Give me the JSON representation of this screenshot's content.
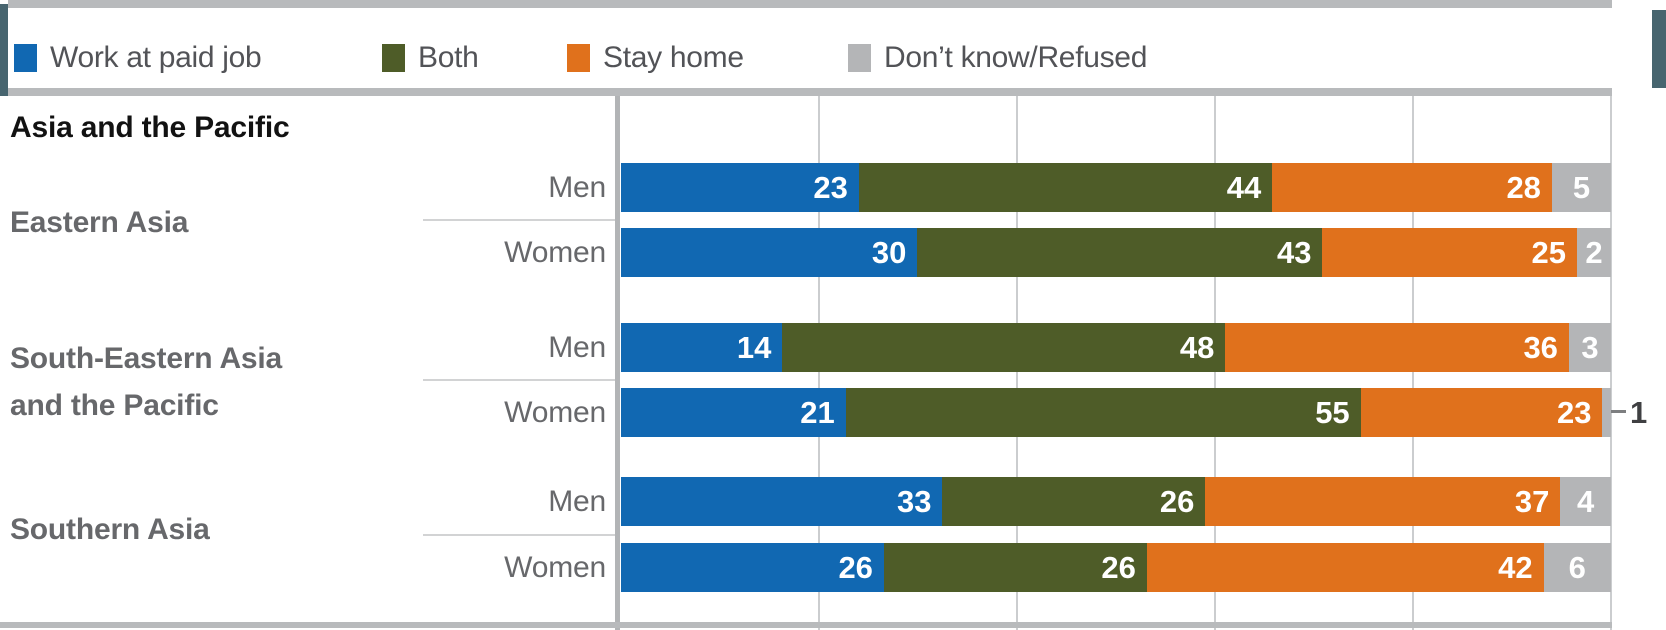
{
  "legend": {
    "items": [
      {
        "label": "Work at paid job",
        "color": "#1168b2"
      },
      {
        "label": "Both",
        "color": "#4e5c28"
      },
      {
        "label": "Stay home",
        "color": "#e0711c"
      },
      {
        "label": "Don’t know/Refused",
        "color": "#b4b5b7"
      }
    ]
  },
  "chart_data": {
    "type": "bar",
    "orientation": "horizontal",
    "stacked": true,
    "title": "Asia and the Pacific",
    "unit": "percent",
    "xlim": [
      0,
      100
    ],
    "gridlines_pct": [
      20,
      40,
      60,
      80,
      100
    ],
    "grid": true,
    "legend_position": "top",
    "series_names": [
      "Work at paid job",
      "Both",
      "Stay home",
      "Don’t know/Refused"
    ],
    "series_colors": [
      "#1168b2",
      "#4e5c28",
      "#e0711c",
      "#b4b5b7"
    ],
    "groups": [
      {
        "label_lines": [
          "Eastern Asia"
        ],
        "rows": [
          {
            "label": "Men",
            "values": [
              23,
              44,
              28,
              5
            ]
          },
          {
            "label": "Women",
            "values": [
              30,
              43,
              25,
              2
            ]
          }
        ]
      },
      {
        "label_lines": [
          "South-Eastern Asia",
          "and the Pacific"
        ],
        "rows": [
          {
            "label": "Men",
            "values": [
              14,
              48,
              36,
              3
            ]
          },
          {
            "label": "Women",
            "values": [
              21,
              55,
              23,
              1
            ],
            "last_label_outside": true
          }
        ]
      },
      {
        "label_lines": [
          "Southern Asia"
        ],
        "rows": [
          {
            "label": "Men",
            "values": [
              33,
              26,
              37,
              4
            ]
          },
          {
            "label": "Women",
            "values": [
              26,
              26,
              42,
              6
            ]
          }
        ]
      }
    ]
  }
}
